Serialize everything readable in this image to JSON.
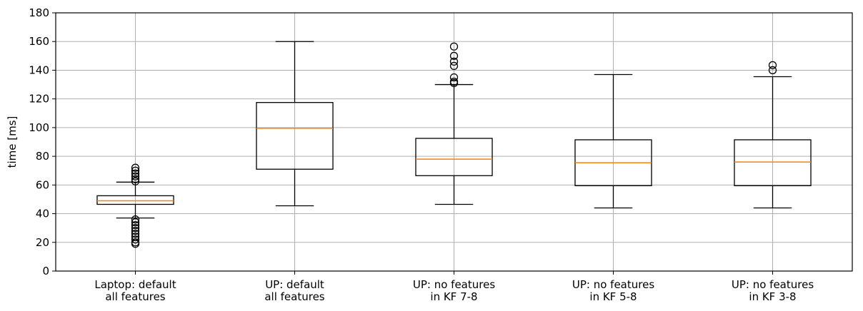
{
  "chart_data": {
    "type": "box",
    "title": "",
    "xlabel": "",
    "ylabel": "time [ms]",
    "ylim": [
      0,
      180
    ],
    "yticks": [
      0,
      20,
      40,
      60,
      80,
      100,
      120,
      140,
      160,
      180
    ],
    "grid": true,
    "categories": [
      [
        "Laptop: default",
        "all features"
      ],
      [
        "UP: default",
        "all features"
      ],
      [
        "UP: no features",
        "in KF 7-8"
      ],
      [
        "UP: no features",
        "in KF 5-8"
      ],
      [
        "UP: no features",
        "in KF 3-8"
      ]
    ],
    "boxes": [
      {
        "whisker_low": 37,
        "q1": 46.5,
        "median": 49,
        "q3": 52.5,
        "whisker_high": 62,
        "outliers": [
          19,
          20,
          22,
          24,
          26,
          28,
          30,
          32,
          34,
          36,
          62.5,
          64,
          66,
          68,
          70,
          72
        ]
      },
      {
        "whisker_low": 45.5,
        "q1": 71,
        "median": 99.5,
        "q3": 117.5,
        "whisker_high": 160,
        "outliers": []
      },
      {
        "whisker_low": 46.5,
        "q1": 66.5,
        "median": 78,
        "q3": 92.5,
        "whisker_high": 130,
        "outliers": [
          131,
          132,
          135,
          143,
          146,
          150,
          156.5
        ]
      },
      {
        "whisker_low": 44,
        "q1": 59.5,
        "median": 75.5,
        "q3": 91.5,
        "whisker_high": 137,
        "outliers": []
      },
      {
        "whisker_low": 44,
        "q1": 59.5,
        "median": 76,
        "q3": 91.5,
        "whisker_high": 135.5,
        "outliers": [
          140,
          143.5
        ]
      }
    ],
    "colors": {
      "box": "#000000",
      "median": "#ff7f0e",
      "grid": "#b0b0b0"
    }
  }
}
